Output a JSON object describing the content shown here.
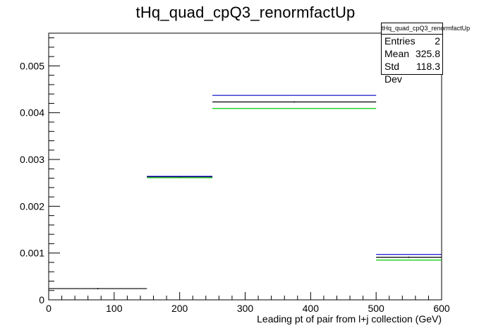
{
  "title": "tHq_quad_cpQ3_renormfactUp",
  "stats": {
    "name": "tHq_quad_cpQ3_renormfactUp",
    "rows": [
      {
        "label": "Entries",
        "value": "2"
      },
      {
        "label": "Mean",
        "value": "325.8"
      },
      {
        "label": "Std Dev",
        "value": "118.3"
      }
    ]
  },
  "chart_data": {
    "type": "step-histogram",
    "xlabel": "Leading pt of pair from l+j collection (GeV)",
    "ylabel": "",
    "xlim": [
      0,
      600
    ],
    "ylim": [
      0,
      0.0057
    ],
    "x_ticks": [
      0,
      100,
      200,
      300,
      400,
      500,
      600
    ],
    "x_tick_labels": [
      "0",
      "100",
      "200",
      "300",
      "400",
      "500",
      "600"
    ],
    "y_ticks": [
      0,
      0.001,
      0.002,
      0.003,
      0.004,
      0.005
    ],
    "y_tick_labels": [
      "0",
      "0.001",
      "0.002",
      "0.003",
      "0.004",
      "0.005"
    ],
    "bin_edges": [
      0,
      150,
      250,
      500,
      600
    ],
    "series": [
      {
        "color": "#000000",
        "values": [
          0.00024,
          0.00263,
          0.00423,
          0.00091
        ]
      },
      {
        "color": "#0000cc",
        "values": [
          null,
          0.00264,
          0.00437,
          0.00097
        ]
      },
      {
        "color": "#00cc00",
        "values": [
          null,
          0.00261,
          0.00409,
          0.00085
        ]
      }
    ],
    "grid": false,
    "legend": "top-right"
  }
}
